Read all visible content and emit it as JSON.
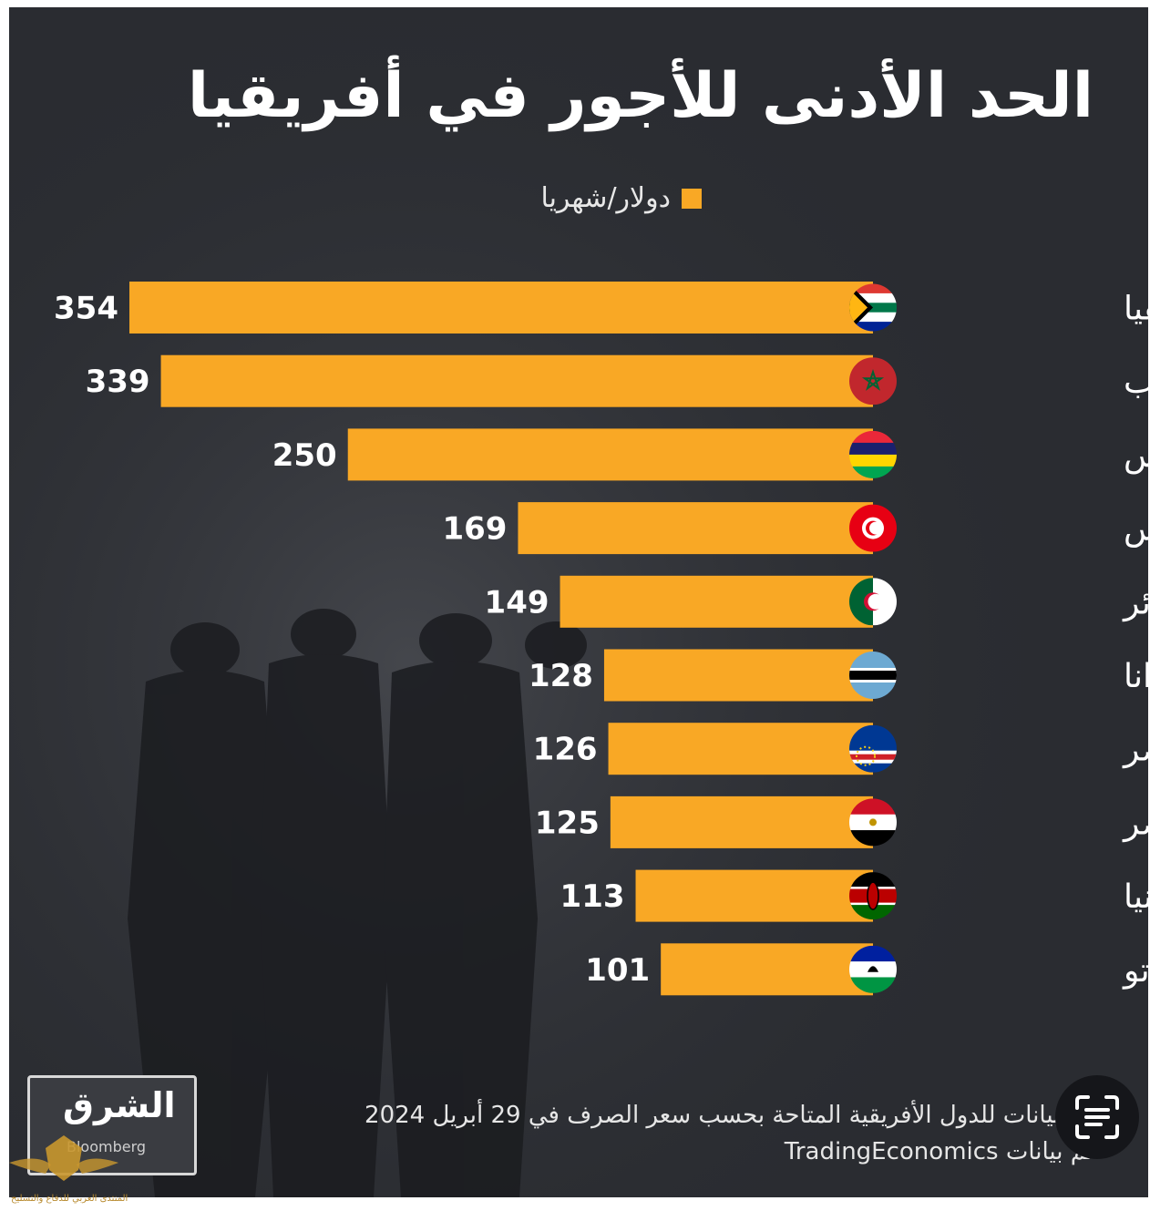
{
  "title": "الحد الأدنى للأجور في أفريقيا",
  "legend": {
    "label": "دولار/شهريا",
    "color": "#f9a825"
  },
  "footer": {
    "line1": "و البيانات للدول الأفريقية المتاحة بحسب سعر الصرف في 29 أبريل 2024",
    "line2": "لم بيانات TradingEconomics"
  },
  "logo": {
    "text": "الشرق",
    "sub": "Bloomberg",
    "icon": "asharq-bloomberg-logo"
  },
  "lens_button": {
    "icon": "scan-text-icon"
  },
  "watermark": {
    "icon": "eagle-emblem-icon",
    "text": "المنتدى العربي للدفاع والتسليح"
  },
  "colors": {
    "background": "#2a2c31",
    "bar": "#f9a825",
    "text": "#ffffff"
  },
  "chart_data": {
    "type": "bar",
    "orientation": "horizontal",
    "direction": "rtl",
    "title": "الحد الأدنى للأجور في أفريقيا",
    "unit": "دولار/شهريا",
    "categories": [
      "جنوب أفريقيا",
      "المغرب",
      "موريشيوس",
      "تونس",
      "الجزائر",
      "بوتسوانا",
      "الرأس الأخضر",
      "مصر",
      "كينيا",
      "ليسوتو"
    ],
    "values": [
      354,
      339,
      250,
      169,
      149,
      128,
      126,
      125,
      113,
      101
    ],
    "flags": [
      "south-africa-flag-icon",
      "morocco-flag-icon",
      "mauritius-flag-icon",
      "tunisia-flag-icon",
      "algeria-flag-icon",
      "botswana-flag-icon",
      "cape-verde-flag-icon",
      "egypt-flag-icon",
      "kenya-flag-icon",
      "lesotho-flag-icon"
    ],
    "grid": false,
    "value_labels": true
  }
}
